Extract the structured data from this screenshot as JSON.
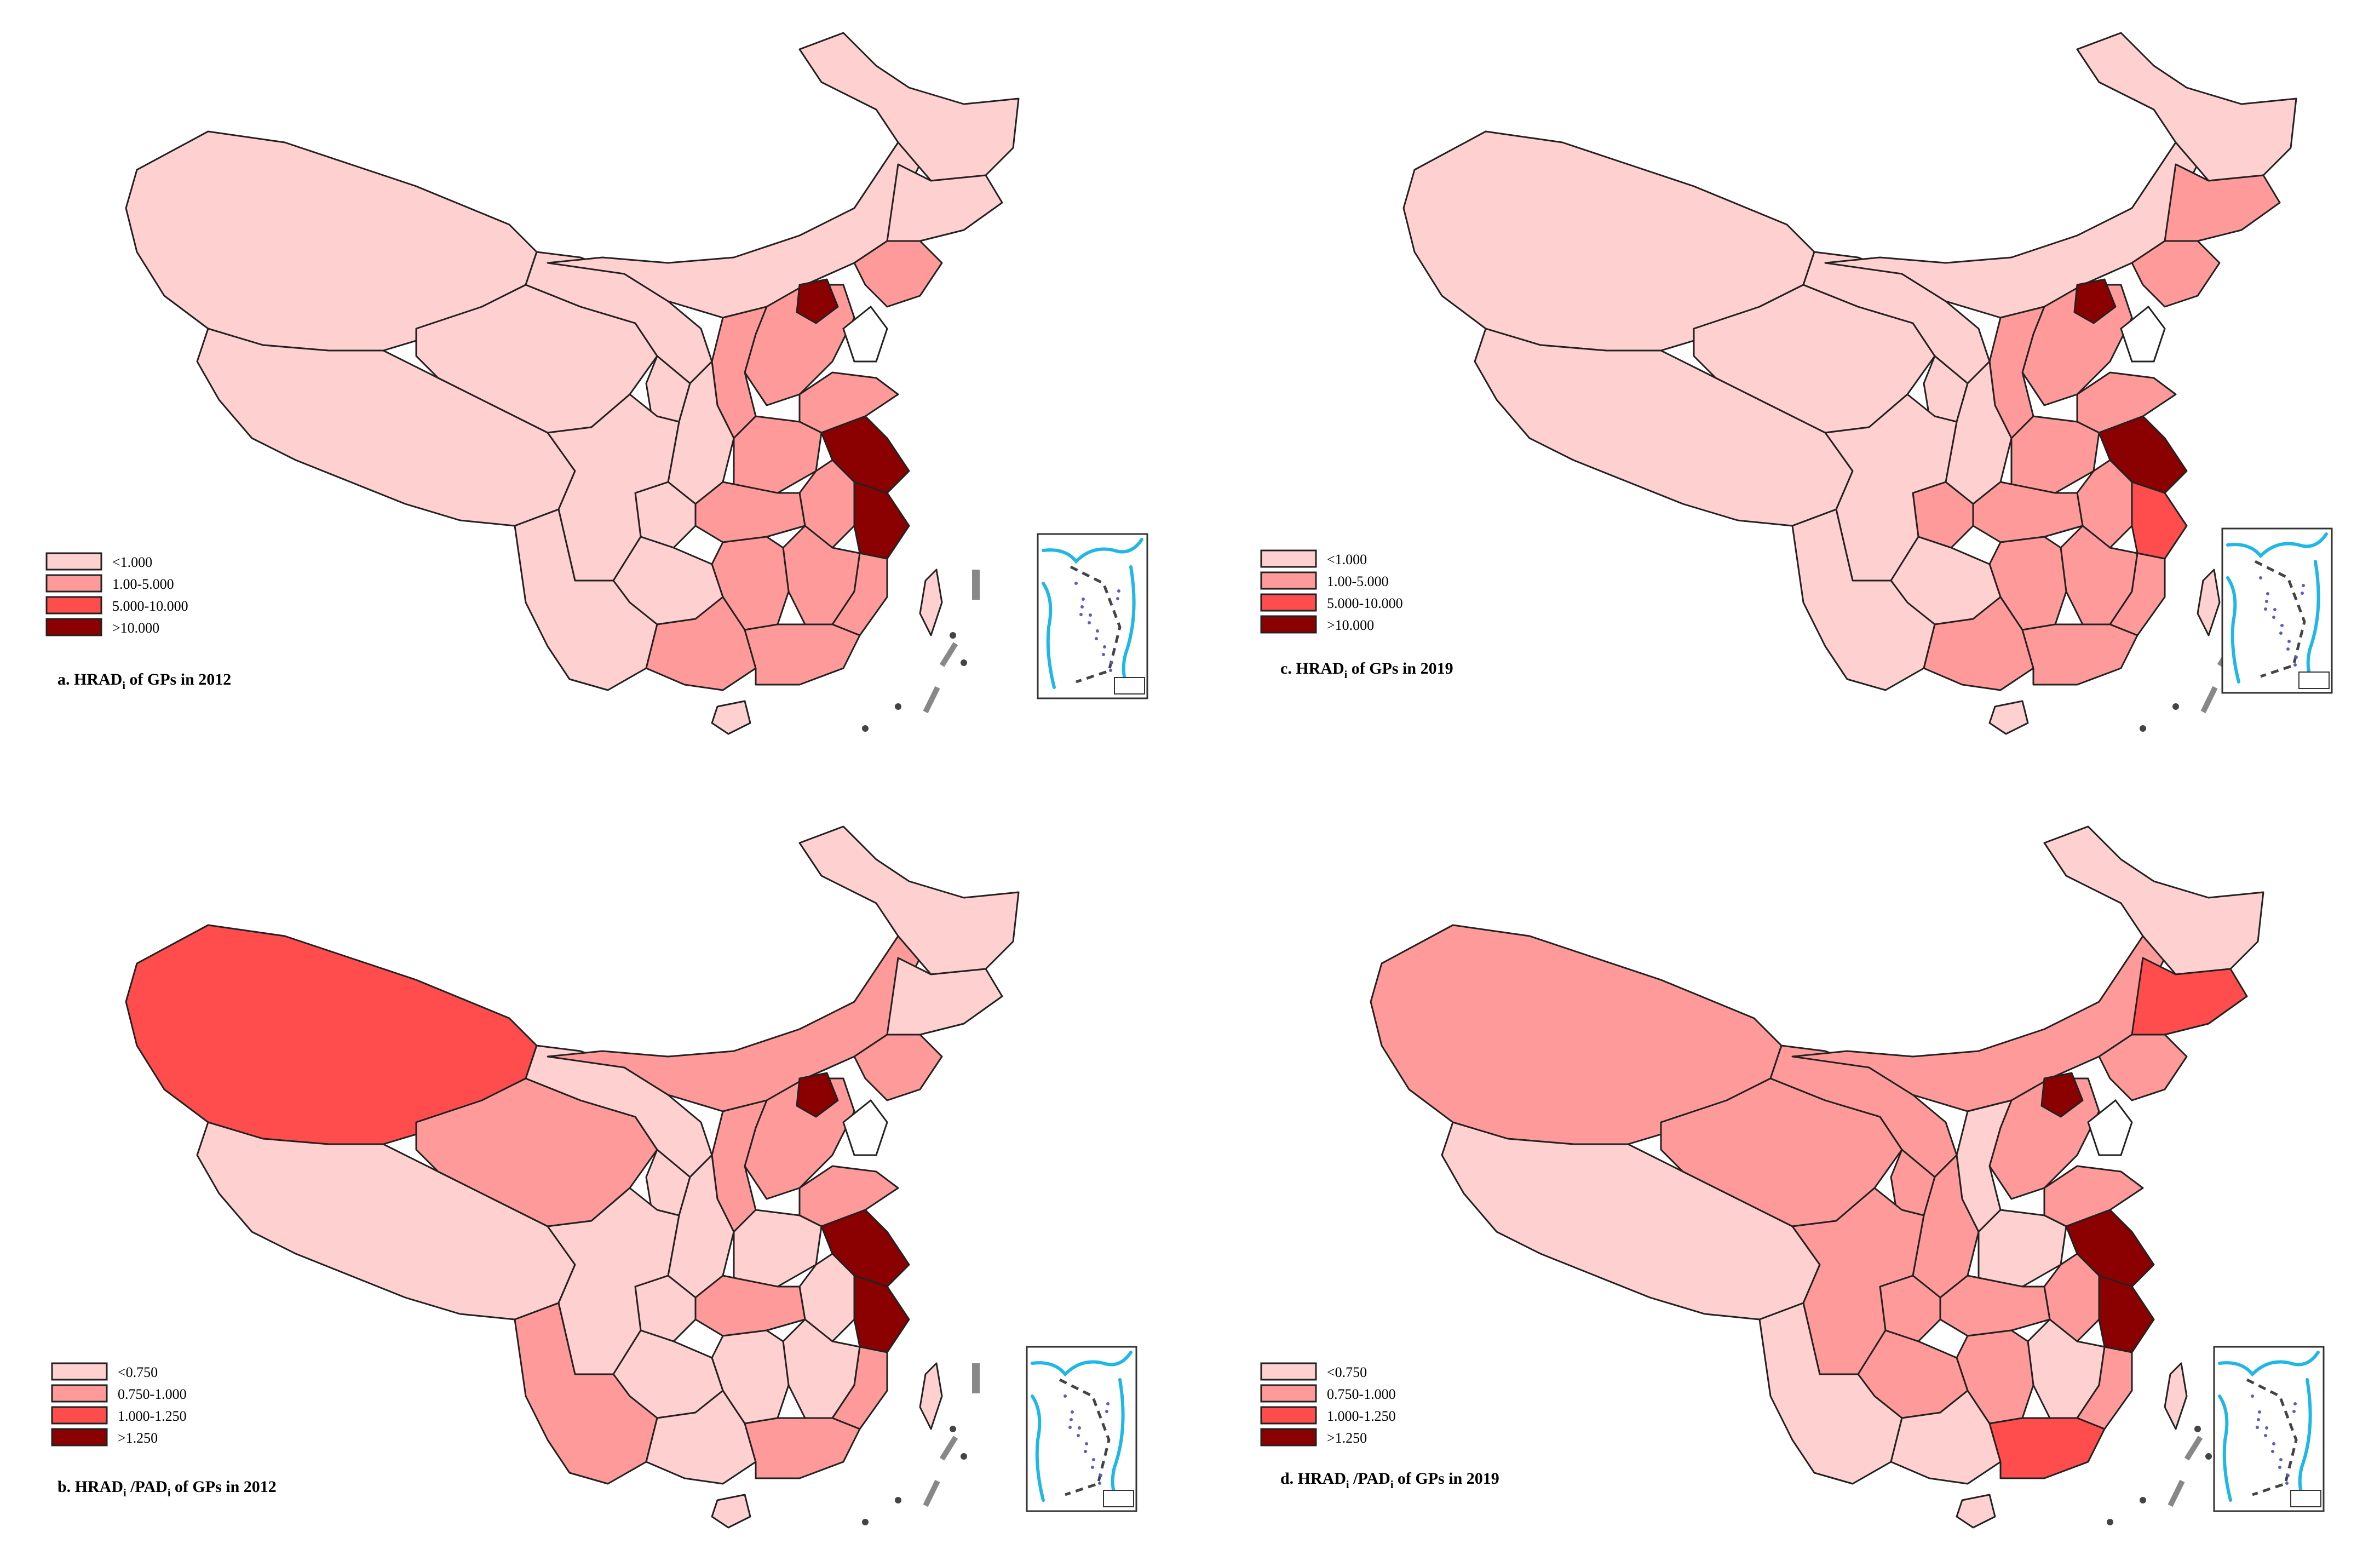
{
  "palette": {
    "c0": "#ffd0d0",
    "c1": "#ff9a9a",
    "c2": "#ff4c4c",
    "c3": "#8b0000",
    "border": "#222222",
    "inset_sea": "#1fb7e6"
  },
  "icons": {
    "inset": "south-china-sea-inset-icon",
    "taiwan": "taiwan-island-icon",
    "hainan": "hainan-island-icon"
  },
  "maps": [
    {
      "id": "a",
      "caption_prefix": "a.  HRAD",
      "caption_sub": "i",
      "caption_suffix": " of GPs in 2012",
      "legend": [
        "<1.000",
        "1.00-5.000",
        "5.000-10.000",
        ">10.000"
      ],
      "classes": {
        "xinjiang": 0,
        "tibet": 0,
        "qinghai": 0,
        "gansu": 0,
        "inner_mongolia": 0,
        "heilongjiang": 0,
        "jilin": 0,
        "liaoning": 1,
        "hebei": 1,
        "beijing": 3,
        "shanxi": 1,
        "shaanxi": 0,
        "ningxia": 0,
        "sichuan": 0,
        "chongqing": 0,
        "yunnan": 0,
        "guizhou": 0,
        "guangxi": 1,
        "guangdong": 1,
        "hunan": 1,
        "hubei": 1,
        "henan": 1,
        "shandong": 1,
        "anhui": 1,
        "jiangsu": 3,
        "zhejiang": 3,
        "jiangxi": 1,
        "fujian": 1,
        "hainan": 0,
        "taiwan": 0
      }
    },
    {
      "id": "c",
      "caption_prefix": "c.  HRAD",
      "caption_sub": "i",
      "caption_suffix": " of GPs in 2019",
      "legend": [
        "<1.000",
        "1.00-5.000",
        "5.000-10.000",
        ">10.000"
      ],
      "classes": {
        "xinjiang": 0,
        "tibet": 0,
        "qinghai": 0,
        "gansu": 0,
        "inner_mongolia": 0,
        "heilongjiang": 0,
        "jilin": 1,
        "liaoning": 1,
        "hebei": 1,
        "beijing": 3,
        "shanxi": 1,
        "shaanxi": 0,
        "ningxia": 0,
        "sichuan": 0,
        "chongqing": 1,
        "yunnan": 0,
        "guizhou": 0,
        "guangxi": 1,
        "guangdong": 1,
        "hunan": 1,
        "hubei": 1,
        "henan": 1,
        "shandong": 1,
        "anhui": 1,
        "jiangsu": 3,
        "zhejiang": 2,
        "jiangxi": 1,
        "fujian": 1,
        "hainan": 0,
        "taiwan": 0
      }
    },
    {
      "id": "b",
      "caption_prefix": "b.  HRAD",
      "caption_sub": "i",
      "caption_mid": " /PAD",
      "caption_sub2": "i",
      "caption_suffix": " of GPs in 2012",
      "legend": [
        "<0.750",
        "0.750-1.000",
        "1.000-1.250",
        ">1.250"
      ],
      "classes": {
        "xinjiang": 2,
        "tibet": 0,
        "qinghai": 1,
        "gansu": 0,
        "inner_mongolia": 1,
        "heilongjiang": 0,
        "jilin": 0,
        "liaoning": 1,
        "hebei": 1,
        "beijing": 3,
        "shanxi": 1,
        "shaanxi": 0,
        "ningxia": 0,
        "sichuan": 0,
        "chongqing": 0,
        "yunnan": 1,
        "guizhou": 0,
        "guangxi": 0,
        "guangdong": 1,
        "hunan": 0,
        "hubei": 1,
        "henan": 0,
        "shandong": 1,
        "anhui": 0,
        "jiangsu": 3,
        "zhejiang": 3,
        "jiangxi": 0,
        "fujian": 1,
        "hainan": 0,
        "taiwan": 0
      }
    },
    {
      "id": "d",
      "caption_prefix": "d.  HRAD",
      "caption_sub": "i",
      "caption_mid": " /PAD",
      "caption_sub2": "i",
      "caption_suffix": " of GPs in 2019",
      "legend": [
        "<0.750",
        "0.750-1.000",
        "1.000-1.250",
        ">1.250"
      ],
      "classes": {
        "xinjiang": 1,
        "tibet": 0,
        "qinghai": 1,
        "gansu": 1,
        "inner_mongolia": 1,
        "heilongjiang": 0,
        "jilin": 2,
        "liaoning": 1,
        "hebei": 1,
        "beijing": 3,
        "shanxi": 0,
        "shaanxi": 1,
        "ningxia": 1,
        "sichuan": 1,
        "chongqing": 1,
        "yunnan": 0,
        "guizhou": 1,
        "guangxi": 0,
        "guangdong": 2,
        "hunan": 1,
        "hubei": 1,
        "henan": 0,
        "shandong": 1,
        "anhui": 1,
        "jiangsu": 3,
        "zhejiang": 3,
        "jiangxi": 0,
        "fujian": 1,
        "hainan": 0,
        "taiwan": 0
      }
    }
  ]
}
